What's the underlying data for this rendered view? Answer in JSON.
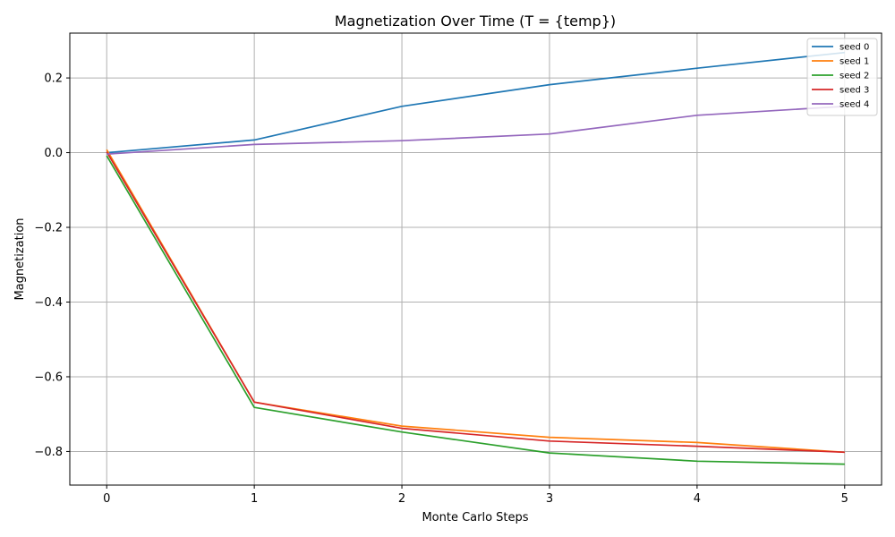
{
  "chart_data": {
    "type": "line",
    "title": "Magnetization Over Time (T = {temp})",
    "xlabel": "Monte Carlo Steps",
    "ylabel": "Magnetization",
    "x": [
      0,
      1,
      2,
      3,
      4,
      5
    ],
    "xlim": [
      -0.25,
      5.25
    ],
    "ylim": [
      -0.89,
      0.32
    ],
    "xticks": [
      0,
      1,
      2,
      3,
      4,
      5
    ],
    "xtick_labels": [
      "0",
      "1",
      "2",
      "3",
      "4",
      "5"
    ],
    "yticks": [
      -0.8,
      -0.6,
      -0.4,
      -0.2,
      0.0,
      0.2
    ],
    "ytick_labels": [
      "−0.8",
      "−0.6",
      "−0.4",
      "−0.2",
      "0.0",
      "0.2"
    ],
    "grid": true,
    "legend_position": "top-right",
    "series": [
      {
        "name": "seed 0",
        "color": "#1f77b4",
        "values": [
          0.0,
          0.034,
          0.124,
          0.182,
          0.226,
          0.268
        ]
      },
      {
        "name": "seed 1",
        "color": "#ff7f0e",
        "values": [
          0.008,
          -0.668,
          -0.732,
          -0.762,
          -0.776,
          -0.802
        ]
      },
      {
        "name": "seed 2",
        "color": "#2ca02c",
        "values": [
          -0.008,
          -0.682,
          -0.748,
          -0.804,
          -0.826,
          -0.834
        ]
      },
      {
        "name": "seed 3",
        "color": "#d62728",
        "values": [
          0.002,
          -0.668,
          -0.738,
          -0.772,
          -0.786,
          -0.802
        ]
      },
      {
        "name": "seed 4",
        "color": "#9467bd",
        "values": [
          -0.004,
          0.022,
          0.032,
          0.05,
          0.1,
          0.124
        ]
      }
    ]
  }
}
